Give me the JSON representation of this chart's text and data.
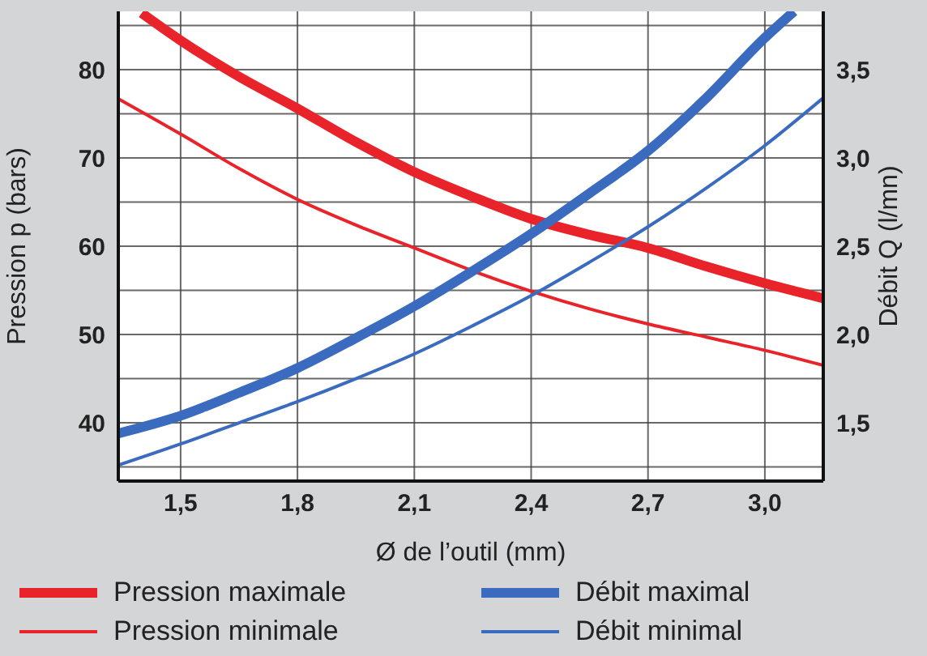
{
  "chart_data": {
    "type": "line",
    "xlabel": "Ø de l’outil (mm)",
    "ylabel": "Pression p (bars)",
    "y2label": "Débit Q (l/mn)",
    "xlim": [
      1.34,
      3.15
    ],
    "xticks": [
      {
        "value": 1.5,
        "label": "1,5"
      },
      {
        "value": 1.8,
        "label": "1,8"
      },
      {
        "value": 2.1,
        "label": "2,1"
      },
      {
        "value": 2.4,
        "label": "2,4"
      },
      {
        "value": 2.7,
        "label": "2,7"
      },
      {
        "value": 3.0,
        "label": "3,0"
      }
    ],
    "ylim": [
      33.4,
      86.6
    ],
    "yticks": [
      {
        "value": 35,
        "label": null
      },
      40,
      {
        "value": 45,
        "label": null
      },
      50,
      {
        "value": 55,
        "label": null
      },
      60,
      {
        "value": 65,
        "label": null
      },
      70,
      {
        "value": 75,
        "label": null
      },
      80,
      {
        "value": 85,
        "label": null
      }
    ],
    "y2lim": [
      1.17,
      3.83
    ],
    "y2ticks": [
      {
        "value": 1.5,
        "label": "1,5"
      },
      {
        "value": 2.0,
        "label": "2,0"
      },
      {
        "value": 2.5,
        "label": "2,5"
      },
      {
        "value": 3.0,
        "label": "3,0"
      },
      {
        "value": 3.5,
        "label": "3,5"
      }
    ],
    "grid": true,
    "legend": "bottom",
    "line_style": "solid",
    "marker": "none",
    "series": [
      {
        "name": "Pression maximale",
        "color": "#e8242a",
        "x": [
          1.4,
          1.5,
          1.65,
          1.8,
          1.95,
          2.1,
          2.25,
          2.4,
          2.55,
          2.7,
          2.85,
          3.0,
          3.15
        ],
        "values": [
          86.4,
          83.3,
          79.2,
          75.6,
          71.8,
          68.4,
          65.6,
          63.1,
          61.3,
          59.8,
          57.7,
          55.8,
          54.1
        ]
      },
      {
        "name": "Pression minimale",
        "color": "#e8242a",
        "x": [
          1.34,
          1.5,
          1.65,
          1.8,
          1.95,
          2.1,
          2.25,
          2.4,
          2.55,
          2.7,
          2.85,
          3.0,
          3.15
        ],
        "values": [
          76.7,
          72.7,
          68.8,
          65.3,
          62.4,
          59.8,
          57.2,
          54.9,
          52.9,
          51.2,
          49.7,
          48.2,
          46.5
        ]
      },
      {
        "name": "Débit maximal",
        "color": "#3a6bbf",
        "axis": "y2",
        "x": [
          1.34,
          1.5,
          1.65,
          1.8,
          1.95,
          2.1,
          2.25,
          2.4,
          2.55,
          2.7,
          2.85,
          3.0,
          3.075
        ],
        "values": [
          1.44,
          1.54,
          1.67,
          1.81,
          1.98,
          2.16,
          2.36,
          2.57,
          2.8,
          3.04,
          3.34,
          3.68,
          3.83
        ]
      },
      {
        "name": "Débit minimal",
        "color": "#3a6bbf",
        "axis": "y2",
        "x": [
          1.34,
          1.5,
          1.65,
          1.8,
          1.95,
          2.1,
          2.25,
          2.4,
          2.55,
          2.7,
          2.85,
          3.0,
          3.15
        ],
        "values": [
          1.26,
          1.38,
          1.5,
          1.62,
          1.75,
          1.89,
          2.05,
          2.22,
          2.41,
          2.61,
          2.83,
          3.07,
          3.34
        ]
      }
    ]
  }
}
